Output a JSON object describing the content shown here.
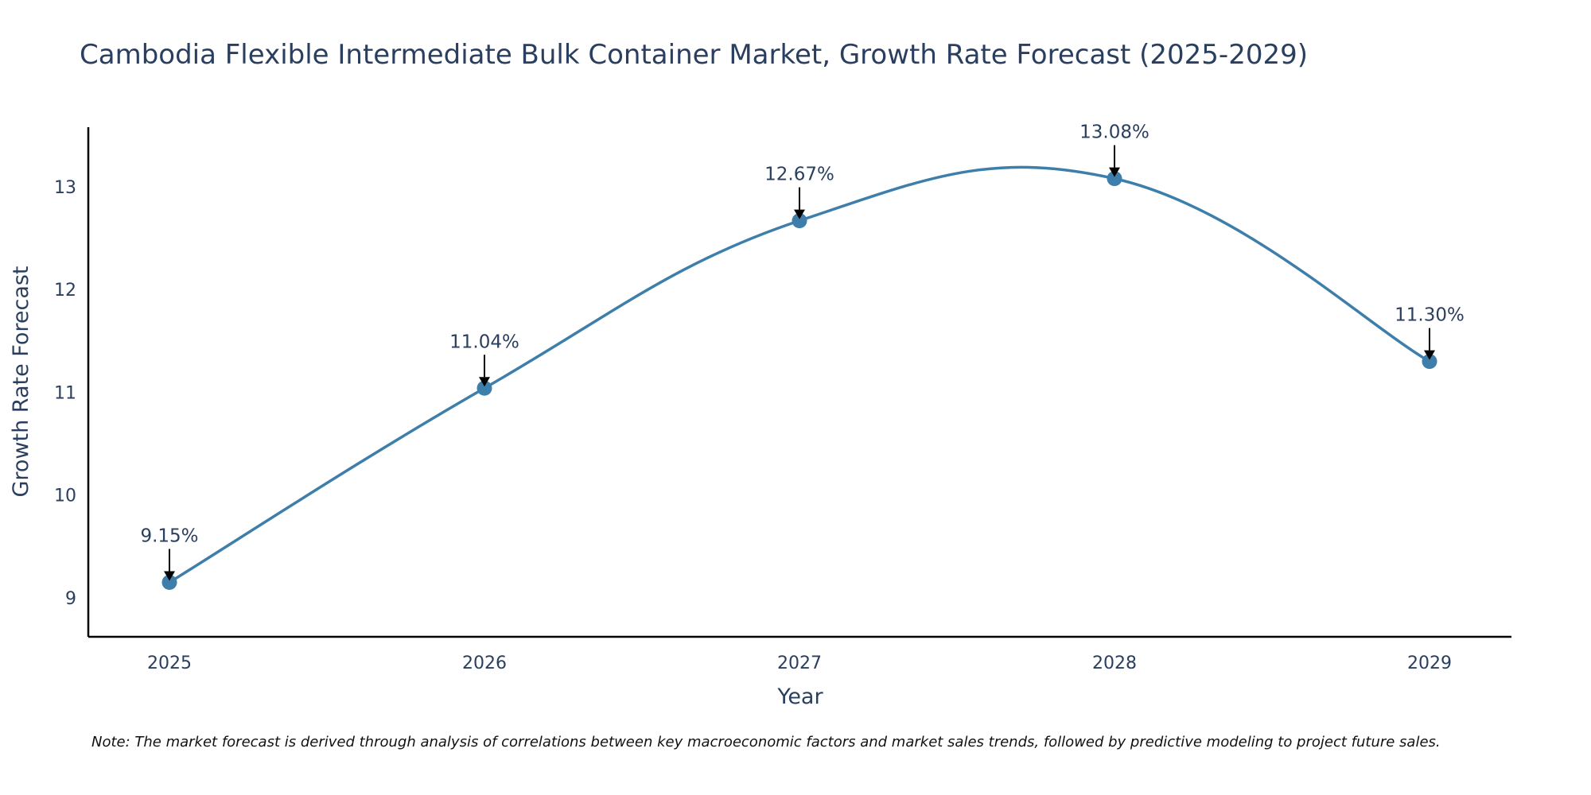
{
  "chart_data": {
    "type": "line",
    "title": "Cambodia Flexible Intermediate Bulk Container Market, Growth Rate Forecast (2025-2029)",
    "xlabel": "Year",
    "ylabel": "Growth Rate Forecast",
    "categories": [
      "2025",
      "2026",
      "2027",
      "2028",
      "2029"
    ],
    "values": [
      9.15,
      11.04,
      12.67,
      13.08,
      11.3
    ],
    "data_labels": [
      "9.15%",
      "11.04%",
      "12.67%",
      "13.08%",
      "11.30%"
    ],
    "y_ticks": [
      9,
      10,
      11,
      12,
      13
    ],
    "y_tick_labels": [
      "9",
      "10",
      "11",
      "12",
      "13"
    ],
    "ylim": [
      8.62,
      13.58
    ],
    "grid": false,
    "line_color": "#3d7eaa",
    "marker_color": "#3d7eaa",
    "note": "Note: The market forecast is derived through analysis of correlations between key macroeconomic factors and market sales trends, followed by predictive modeling to project future sales."
  }
}
